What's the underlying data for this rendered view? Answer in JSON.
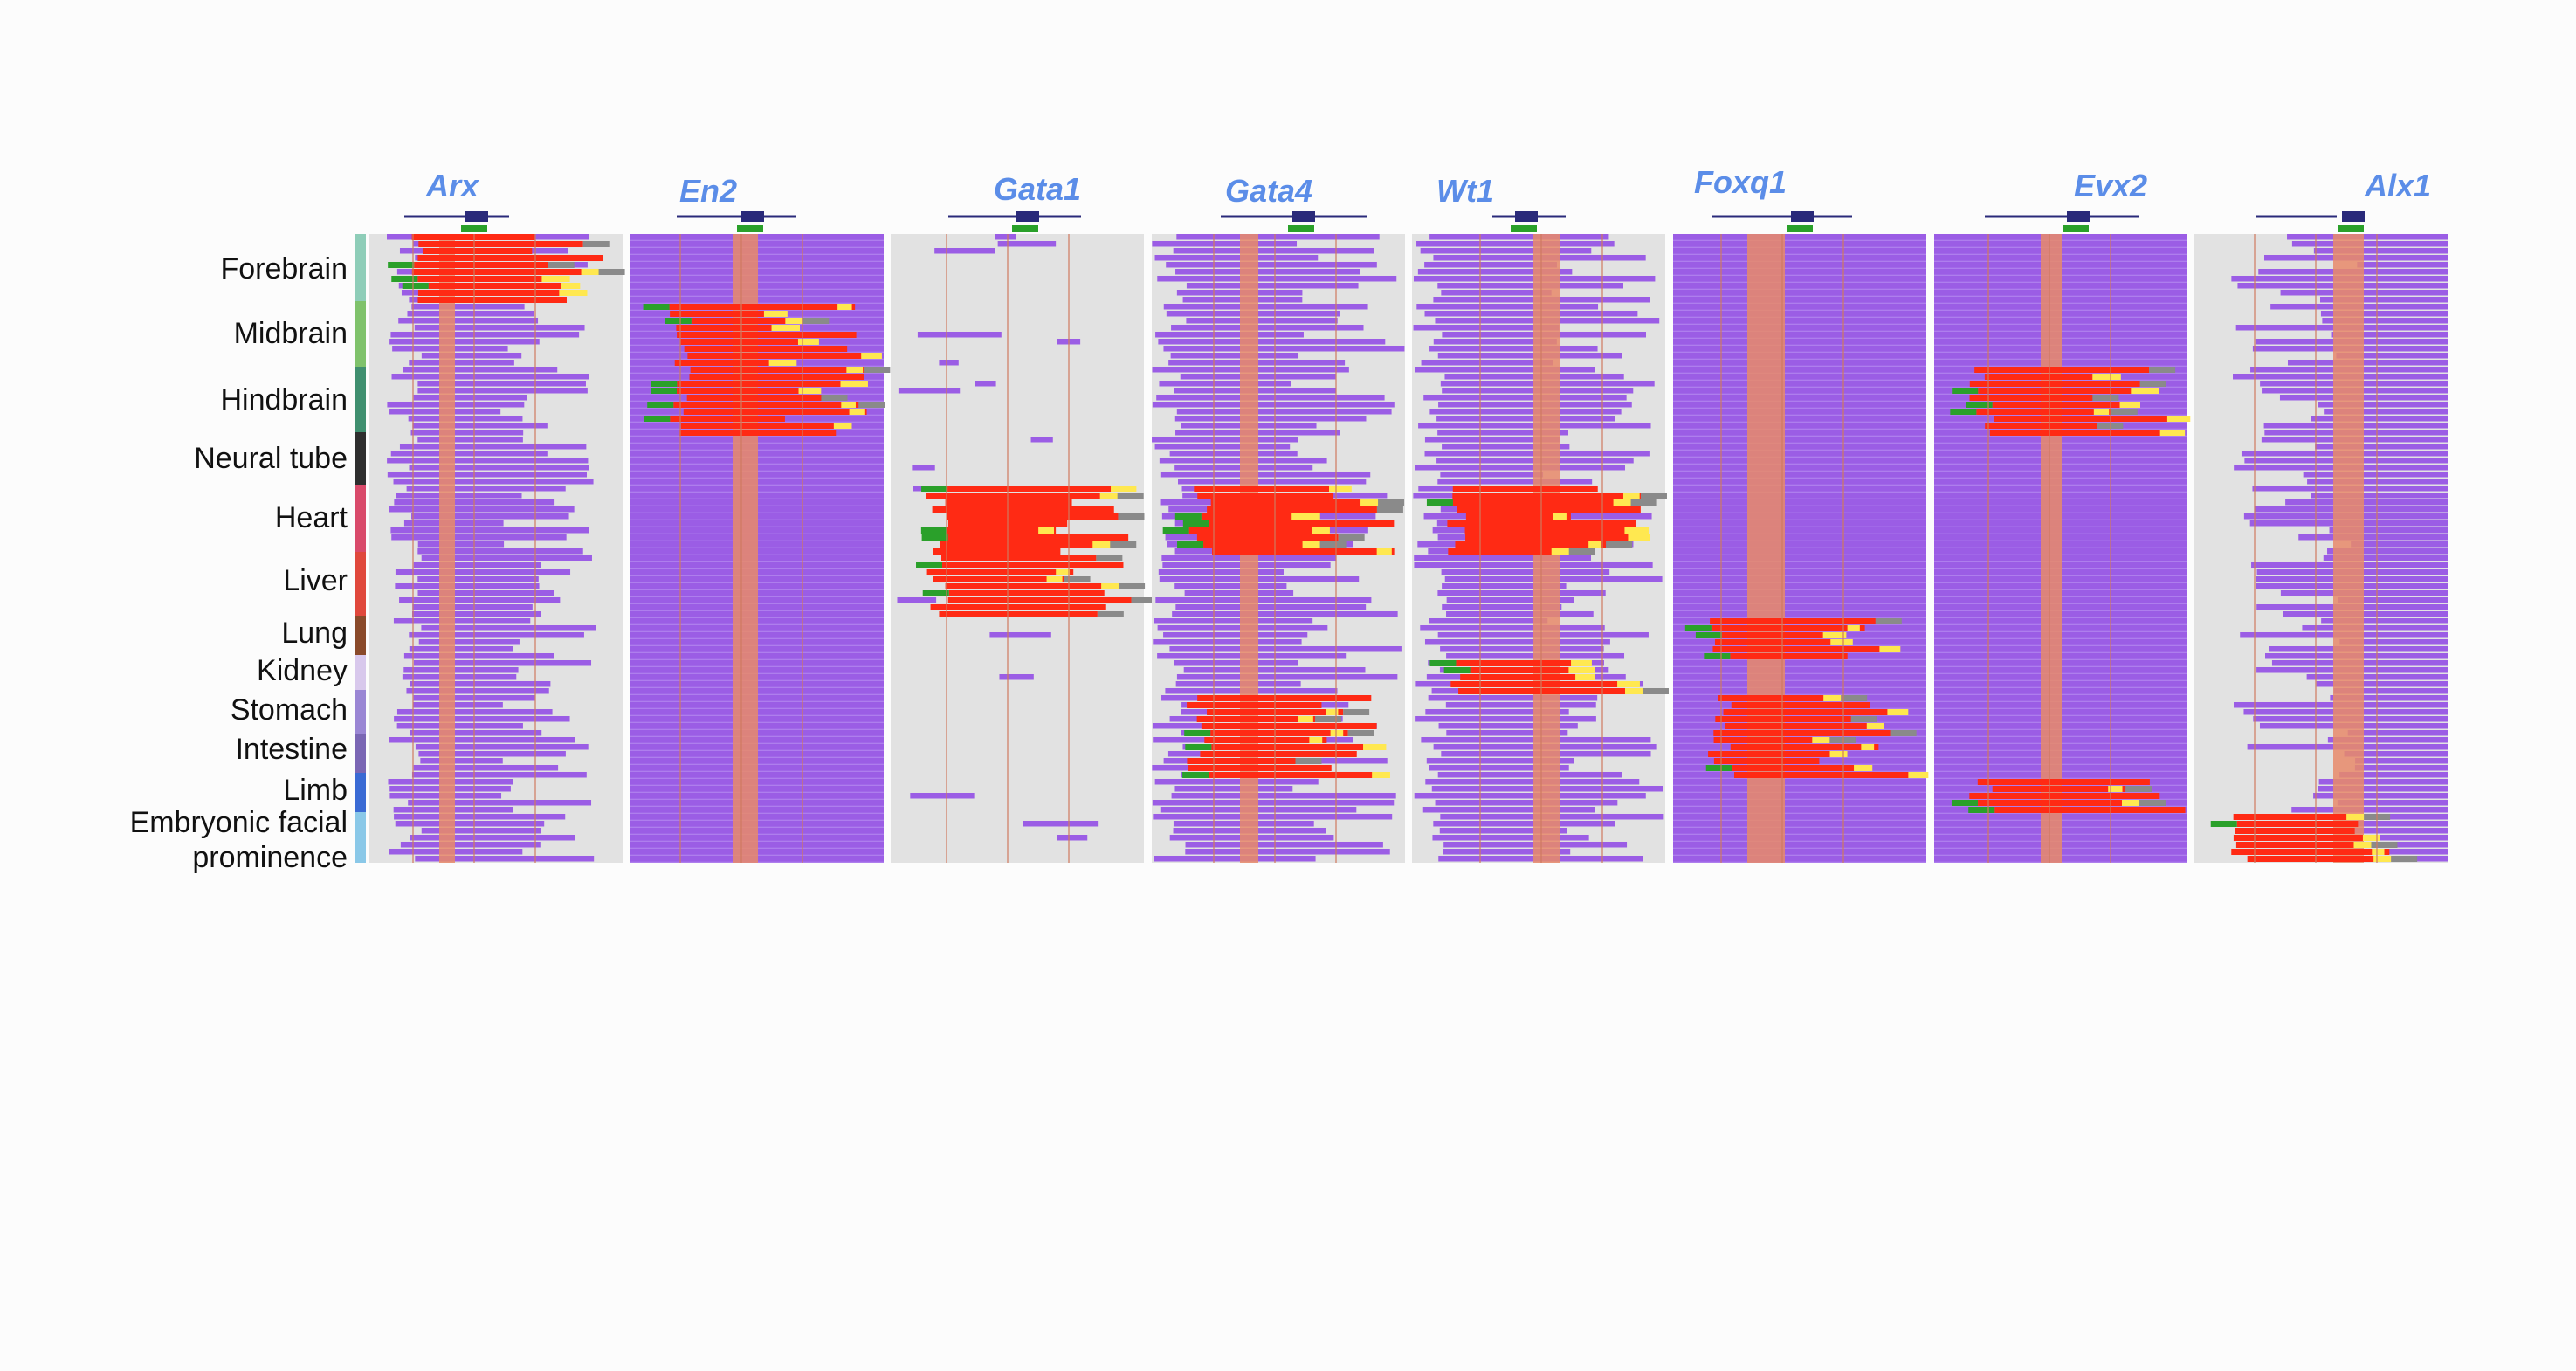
{
  "genes": [
    {
      "name": "Arx",
      "pattern": "gray-left",
      "hot": [
        "Forebrain"
      ]
    },
    {
      "name": "En2",
      "pattern": "purple",
      "hot": [
        "Midbrain",
        "Hindbrain"
      ]
    },
    {
      "name": "Gata1",
      "pattern": "gray-sparse",
      "hot": [
        "Liver",
        "Heart"
      ]
    },
    {
      "name": "Gata4",
      "pattern": "gray-mixed",
      "hot": [
        "Heart",
        "Stomach",
        "Intestine"
      ]
    },
    {
      "name": "Wt1",
      "pattern": "gray-mixed",
      "hot": [
        "Heart",
        "Kidney"
      ]
    },
    {
      "name": "Foxq1",
      "pattern": "purple",
      "hot": [
        "Stomach",
        "Intestine",
        "Lung"
      ]
    },
    {
      "name": "Evx2",
      "pattern": "purple",
      "hot": [
        "Limb",
        "Hindbrain"
      ]
    },
    {
      "name": "Alx1",
      "pattern": "gray-right",
      "hot": [
        "Embryonic facial prominence"
      ]
    }
  ],
  "tissues": [
    {
      "name": "Forebrain",
      "color": "#8ecdb8"
    },
    {
      "name": "Midbrain",
      "color": "#7fc26b"
    },
    {
      "name": "Hindbrain",
      "color": "#3f8f6f"
    },
    {
      "name": "Neural tube",
      "color": "#2e2e2e"
    },
    {
      "name": "Heart",
      "color": "#d94a6a"
    },
    {
      "name": "Liver",
      "color": "#e0483c"
    },
    {
      "name": "Lung",
      "color": "#8a4a2a"
    },
    {
      "name": "Kidney",
      "color": "#d8c8ec"
    },
    {
      "name": "Stomach",
      "color": "#9a86d4"
    },
    {
      "name": "Intestine",
      "color": "#7a66b4"
    },
    {
      "name": "Limb",
      "color": "#3a6ad4"
    },
    {
      "name": "Embryonic facial\nprominence",
      "color": "#8ac8e8"
    }
  ],
  "colors": {
    "purple": "#9b5de5",
    "gray": "#e2e2e2",
    "peach": "#e88a6a",
    "red": "#ff2a14",
    "yellow": "#ffe850",
    "green": "#2aa02a",
    "darkgray": "#8a8a8a",
    "gene-label": "#5b8de8"
  }
}
